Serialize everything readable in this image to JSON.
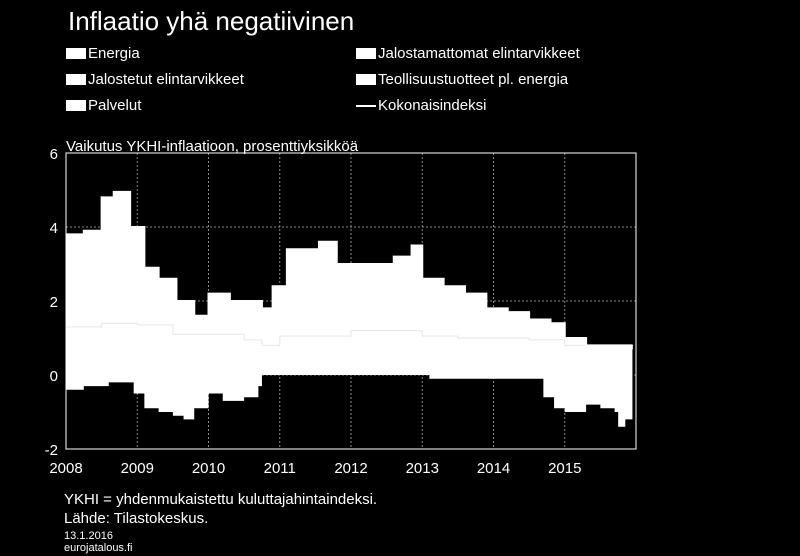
{
  "chart_data": {
    "type": "area",
    "title": "Inflaatio yhä negatiivinen",
    "subtitle": "Vaikutus YKHI-inflaatioon, prosenttiyksikköä",
    "legend": [
      "Energia",
      "Jalostamattomat elintarvikkeet",
      "Jalostetut elintarvikkeet",
      "Teollisuustuotteet pl. energia",
      "Palvelut",
      "Kokonaisindeksi"
    ],
    "ylim": [
      -2,
      6
    ],
    "yticks": [
      "6",
      "4",
      "2",
      "0",
      "-2"
    ],
    "xlim": [
      2008,
      2016
    ],
    "xticks": [
      "2008",
      "2009",
      "2010",
      "2011",
      "2012",
      "2013",
      "2014",
      "2015"
    ],
    "grid": true,
    "kokonaisindeksi": {
      "x": [
        2008.0,
        2008.25,
        2008.5,
        2008.67,
        2008.9,
        2009.1,
        2009.3,
        2009.55,
        2009.8,
        2010.0,
        2010.3,
        2010.6,
        2010.75,
        2010.9,
        2011.1,
        2011.3,
        2011.55,
        2011.8,
        2012.0,
        2012.3,
        2012.6,
        2012.85,
        2013.0,
        2013.3,
        2013.6,
        2013.9,
        2014.2,
        2014.5,
        2014.8,
        2015.0,
        2015.3,
        2015.6,
        2015.85,
        2015.95
      ],
      "y": [
        3.8,
        3.9,
        4.8,
        4.95,
        4.0,
        2.9,
        2.6,
        2.0,
        1.6,
        2.2,
        2.0,
        2.0,
        1.8,
        2.4,
        3.4,
        3.4,
        3.6,
        3.0,
        3.0,
        3.0,
        3.2,
        3.5,
        2.6,
        2.4,
        2.2,
        1.8,
        1.7,
        1.5,
        1.4,
        1.0,
        0.8,
        0.8,
        0.8,
        0.8
      ]
    },
    "positive_band": {
      "x": [
        2008.0,
        2008.5,
        2009.0,
        2009.5,
        2010.0,
        2010.5,
        2010.75,
        2011.0,
        2011.5,
        2012.0,
        2012.5,
        2013.0,
        2013.5,
        2014.0,
        2014.5,
        2015.0,
        2015.5,
        2015.95
      ],
      "y": [
        1.3,
        1.4,
        1.35,
        1.1,
        1.1,
        0.95,
        0.8,
        1.05,
        1.05,
        1.2,
        1.2,
        1.05,
        1.0,
        1.0,
        0.95,
        0.8,
        0.8,
        0.7
      ]
    },
    "negative_bottom": {
      "x": [
        2008.0,
        2008.25,
        2008.6,
        2008.95,
        2009.1,
        2009.3,
        2009.5,
        2009.65,
        2009.8,
        2010.0,
        2010.2,
        2010.5,
        2010.7,
        2010.75,
        2011.0,
        2012.0,
        2012.9,
        2013.1,
        2013.5,
        2014.0,
        2014.5,
        2014.7,
        2014.85,
        2015.0,
        2015.3,
        2015.5,
        2015.7,
        2015.75,
        2015.85,
        2015.95
      ],
      "y": [
        -0.4,
        -0.3,
        -0.2,
        -0.5,
        -0.9,
        -1.0,
        -1.1,
        -1.2,
        -0.9,
        -0.5,
        -0.7,
        -0.6,
        -0.3,
        0.0,
        0.0,
        0.0,
        0.0,
        -0.1,
        -0.1,
        -0.1,
        -0.1,
        -0.6,
        -0.9,
        -1.0,
        -0.8,
        -0.9,
        -1.0,
        -1.4,
        -1.2,
        -1.0
      ]
    }
  },
  "legend_line_color": "#ffffff",
  "footer": {
    "note": "YKHI = yhdenmukaistettu kuluttajahintaindeksi.",
    "source": "Lähde: Tilastokeskus.",
    "date": "13.1.2016",
    "site": "eurojatalous.fi"
  }
}
